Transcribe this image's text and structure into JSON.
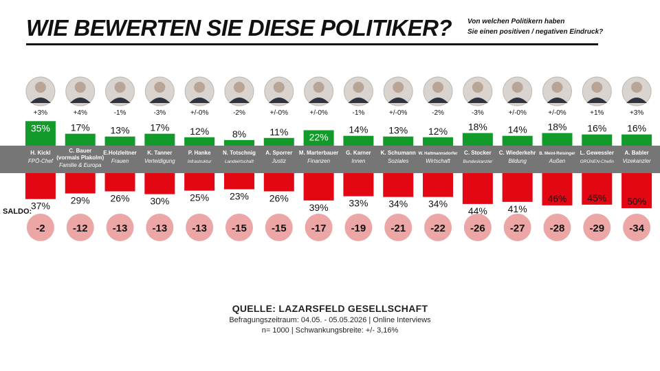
{
  "header": {
    "title": "WIE BEWERTEN SIE DIESE POLITIKER?",
    "question_line1": "Von welchen Politikern haben",
    "question_line2": "Sie einen positiven / negativen Eindruck?"
  },
  "saldo_label": "SALDO:",
  "colors": {
    "positive": "#129a2a",
    "negative": "#e30613",
    "band": "#767676",
    "saldo_circle": "#eda6a6"
  },
  "chart_data": {
    "type": "bar",
    "categories": [
      "H. Kickl",
      "C. Bauer (vormals Plakolm)",
      "E.Holzleitner",
      "K. Tanner",
      "P. Hanke",
      "N. Totschnig",
      "A. Sporrer",
      "M. Marterbauer",
      "G. Karner",
      "K. Schumann",
      "W. Hattmannsdorfer",
      "C. Stocker",
      "C. Wiederkehr",
      "B. Meinl-Reisinger",
      "L. Gewessler",
      "A. Babler"
    ],
    "roles": [
      "FPÖ-Chef",
      "Familie & Europa",
      "Frauen",
      "Verteidigung",
      "Infrastruktur",
      "Landwirtschaft",
      "Justiz",
      "Finanzen",
      "Innen",
      "Soziales",
      "Wirtschaft",
      "Bundeskanzler",
      "Bildung",
      "Außen",
      "GRÜNEN-Chefin",
      "Vizekanzler"
    ],
    "change": [
      "+3%",
      "+4%",
      "-1%",
      "-3%",
      "+/-0%",
      "-2%",
      "+/-0%",
      "+/-0%",
      "-1%",
      "+/-0%",
      "-2%",
      "-3%",
      "+/-0%",
      "+/-0%",
      "+1%",
      "+3%"
    ],
    "series": [
      {
        "name": "positiv",
        "values": [
          35,
          17,
          13,
          17,
          12,
          8,
          11,
          22,
          14,
          13,
          12,
          18,
          14,
          18,
          16,
          16
        ]
      },
      {
        "name": "negativ",
        "values": [
          37,
          29,
          26,
          30,
          25,
          23,
          26,
          39,
          33,
          34,
          34,
          44,
          41,
          46,
          45,
          50
        ]
      }
    ],
    "saldo": [
      -2,
      -12,
      -13,
      -13,
      -13,
      -15,
      -15,
      -17,
      -19,
      -21,
      -22,
      -26,
      -27,
      -28,
      -29,
      -34
    ]
  },
  "source": {
    "title": "QUELLE: LAZARSFELD GESELLSCHAFT",
    "line1": "Befragungszeitraum: 04.05. - 05.05.2026 | Online Interviews",
    "line2": "n= 1000 | Schwankungsbreite: +/- 3,16%"
  }
}
